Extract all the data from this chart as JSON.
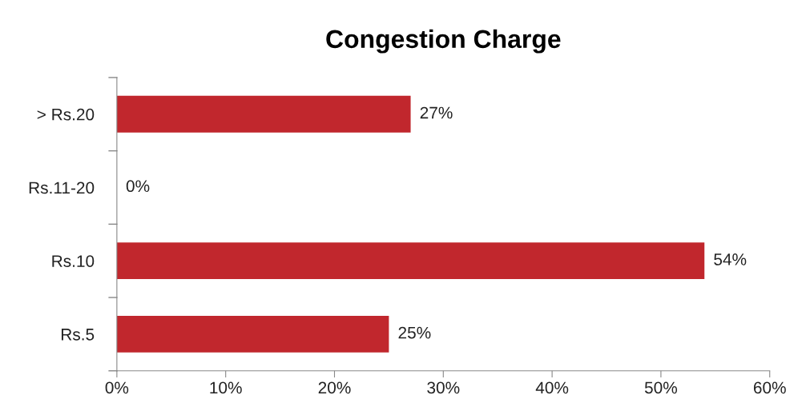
{
  "chart_data": {
    "type": "bar",
    "orientation": "horizontal",
    "title": "Congestion Charge",
    "categories": [
      "> Rs.20",
      "Rs.11-20",
      "Rs.10",
      "Rs.5"
    ],
    "values": [
      27,
      0,
      54,
      25
    ],
    "value_labels": [
      "27%",
      "0%",
      "54%",
      "25%"
    ],
    "color": "#c1272d",
    "xlim": [
      0,
      60
    ],
    "xticks": [
      {
        "value": 0,
        "label": "0%"
      },
      {
        "value": 10,
        "label": "10%"
      },
      {
        "value": 20,
        "label": "20%"
      },
      {
        "value": 30,
        "label": "30%"
      },
      {
        "value": 40,
        "label": "40%"
      },
      {
        "value": 50,
        "label": "50%"
      },
      {
        "value": 60,
        "label": "60%"
      }
    ],
    "grid": false,
    "legend": false
  }
}
